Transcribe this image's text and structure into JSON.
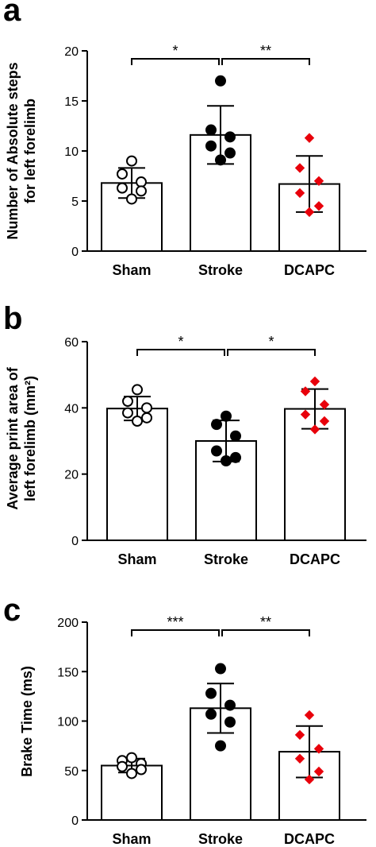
{
  "chart_data": [
    {
      "type": "bar",
      "panel_label": "a",
      "categories": [
        "Sham",
        "Stroke",
        "DCAPC"
      ],
      "values": [
        6.8,
        11.6,
        6.7
      ],
      "error": [
        1.5,
        2.9,
        2.8
      ],
      "ylabel_lines": [
        "Number of Absolute steps",
        "for left forelimb"
      ],
      "ylim": [
        0,
        20
      ],
      "yticks": [
        0,
        5,
        10,
        15,
        20
      ],
      "points": [
        [
          9.0,
          7.7,
          6.9,
          6.3,
          6.0,
          5.2
        ],
        [
          17.0,
          12.1,
          11.4,
          10.5,
          9.8,
          9.1
        ],
        [
          11.3,
          8.3,
          7.0,
          5.8,
          4.5,
          3.9
        ]
      ],
      "significance": [
        {
          "from": 0,
          "to": 1,
          "label": "*"
        },
        {
          "from": 1,
          "to": 2,
          "label": "**"
        }
      ]
    },
    {
      "type": "bar",
      "panel_label": "b",
      "categories": [
        "Sham",
        "Stroke",
        "DCAPC"
      ],
      "values": [
        39.8,
        30.0,
        39.7
      ],
      "error": [
        3.6,
        6.2,
        6.0
      ],
      "ylabel_lines": [
        "Average print area of",
        "left forelimb (mm²)"
      ],
      "ylim": [
        0,
        60
      ],
      "yticks": [
        0,
        20,
        40,
        60
      ],
      "points": [
        [
          45.5,
          42.0,
          40.0,
          38.5,
          37.0,
          36.0
        ],
        [
          37.5,
          35.0,
          31.5,
          27.0,
          25.0,
          24.0
        ],
        [
          48.0,
          45.0,
          41.0,
          38.0,
          36.0,
          33.5
        ]
      ],
      "significance": [
        {
          "from": 0,
          "to": 1,
          "label": "*"
        },
        {
          "from": 1,
          "to": 2,
          "label": "*"
        }
      ]
    },
    {
      "type": "bar",
      "panel_label": "c",
      "categories": [
        "Sham",
        "Stroke",
        "DCAPC"
      ],
      "values": [
        55,
        113,
        69
      ],
      "error": [
        7,
        25,
        26
      ],
      "ylabel_lines": [
        "Brake Time (ms)"
      ],
      "ylim": [
        0,
        200
      ],
      "yticks": [
        0,
        50,
        100,
        150,
        200
      ],
      "points": [
        [
          63.0,
          60.0,
          57.0,
          54.0,
          51.0,
          47.0
        ],
        [
          153.0,
          128.0,
          116.0,
          107.0,
          99.0,
          75.0
        ],
        [
          106.0,
          86.0,
          72.0,
          62.0,
          49.0,
          41.0
        ]
      ],
      "significance": [
        {
          "from": 0,
          "to": 1,
          "label": "***"
        },
        {
          "from": 1,
          "to": 2,
          "label": "**"
        }
      ]
    }
  ],
  "marker_styles": {
    "Sham": {
      "shape": "circle",
      "fill": "#ffffff",
      "stroke": "#000000"
    },
    "Stroke": {
      "shape": "circle",
      "fill": "#000000",
      "stroke": "#000000"
    },
    "DCAPC": {
      "shape": "diamond",
      "fill": "#e8000b",
      "stroke": "#e8000b"
    }
  }
}
